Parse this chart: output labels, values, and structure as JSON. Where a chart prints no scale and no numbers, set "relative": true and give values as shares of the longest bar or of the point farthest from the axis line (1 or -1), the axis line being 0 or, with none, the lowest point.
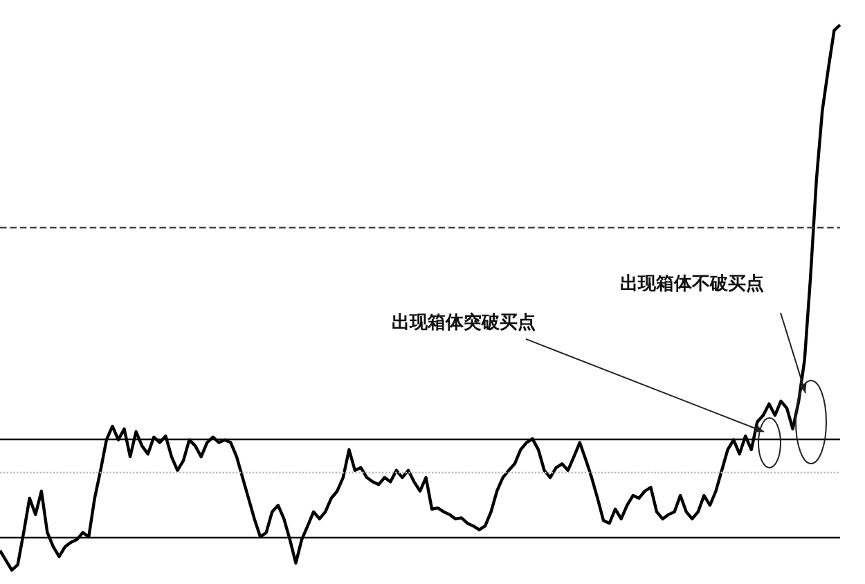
{
  "chart_data": {
    "type": "line",
    "relative": true,
    "grid": false,
    "tick_labels": false,
    "annotations": [
      "出现箱体突破买点",
      "出现箱体不破买点"
    ],
    "categories": [
      null,
      null,
      null,
      null,
      null,
      null,
      null,
      null,
      null,
      null,
      null,
      null,
      null,
      null,
      null,
      null,
      null,
      null,
      null,
      null,
      null,
      null,
      null,
      null,
      null,
      null,
      null,
      null,
      null,
      null,
      null,
      null,
      null,
      null,
      null,
      null,
      null,
      null,
      null,
      null,
      null,
      null,
      null,
      null,
      null,
      null,
      null,
      null,
      null,
      null,
      null,
      null,
      null,
      null,
      null,
      null,
      null,
      null,
      null,
      null,
      null,
      null,
      null,
      null,
      null,
      null,
      null,
      null,
      null,
      null,
      null,
      null,
      null,
      null,
      null,
      null,
      null,
      null,
      null,
      null,
      null,
      null,
      null,
      null,
      null,
      null,
      null,
      null,
      null,
      null,
      null,
      null,
      null,
      null,
      null,
      null,
      null,
      null,
      null,
      null,
      null,
      null,
      null,
      null,
      null,
      null,
      null,
      null,
      null,
      null,
      null,
      null,
      null,
      null,
      null,
      null,
      null,
      null,
      null,
      null,
      null,
      null,
      null,
      null,
      null,
      null,
      null,
      null,
      null,
      null,
      null,
      null,
      null,
      null,
      null,
      null,
      null,
      null,
      null,
      null,
      null,
      null,
      null
    ],
    "series": [
      {
        "color": "#000000",
        "values": [
          0.036,
          0.018,
          0,
          0.01,
          0.069,
          0.132,
          0.102,
          0.145,
          0.069,
          0.043,
          0.025,
          0.043,
          0.051,
          0.056,
          0.069,
          0.061,
          0.132,
          0.183,
          0.239,
          0.264,
          0.239,
          0.259,
          0.208,
          0.254,
          0.228,
          0.213,
          0.244,
          0.234,
          0.246,
          0.208,
          0.183,
          0.201,
          0.239,
          0.228,
          0.208,
          0.234,
          0.244,
          0.234,
          0.239,
          0.234,
          0.208,
          0.17,
          0.132,
          0.094,
          0.061,
          0.069,
          0.107,
          0.119,
          0.094,
          0.056,
          0.013,
          0.056,
          0.081,
          0.107,
          0.094,
          0.107,
          0.132,
          0.145,
          0.17,
          0.221,
          0.183,
          0.188,
          0.17,
          0.162,
          0.157,
          0.17,
          0.162,
          0.183,
          0.17,
          0.183,
          0.162,
          0.145,
          0.17,
          0.112,
          0.114,
          0.107,
          0.102,
          0.094,
          0.096,
          0.086,
          0.081,
          0.074,
          0.081,
          0.107,
          0.145,
          0.17,
          0.183,
          0.195,
          0.221,
          0.234,
          0.241,
          0.221,
          0.183,
          0.17,
          0.188,
          0.195,
          0.183,
          0.208,
          0.234,
          0.203,
          0.17,
          0.132,
          0.091,
          0.086,
          0.112,
          0.094,
          0.119,
          0.137,
          0.132,
          0.145,
          0.152,
          0.107,
          0.094,
          0.102,
          0.107,
          0.137,
          0.107,
          0.094,
          0.107,
          0.137,
          0.119,
          0.145,
          0.183,
          0.221,
          0.239,
          0.213,
          0.246,
          0.221,
          0.272,
          0.284,
          0.305,
          0.284,
          0.31,
          0.297,
          0.259,
          0.31,
          0.386,
          0.538,
          0.716,
          0.843,
          0.919,
          0.99,
          1
        ]
      }
    ],
    "ref_lines": [
      {
        "axis": "y",
        "value": 0.241,
        "color": "#000000",
        "line_style": "solid"
      },
      {
        "axis": "y",
        "value": 0.061,
        "color": "#000000",
        "line_style": "solid"
      },
      {
        "axis": "y",
        "value": 0.632,
        "color": "#444444",
        "line_style": "dashed"
      },
      {
        "axis": "y",
        "value": 0.178,
        "color": "#bbbbbb",
        "line_style": "dotted"
      }
    ]
  }
}
